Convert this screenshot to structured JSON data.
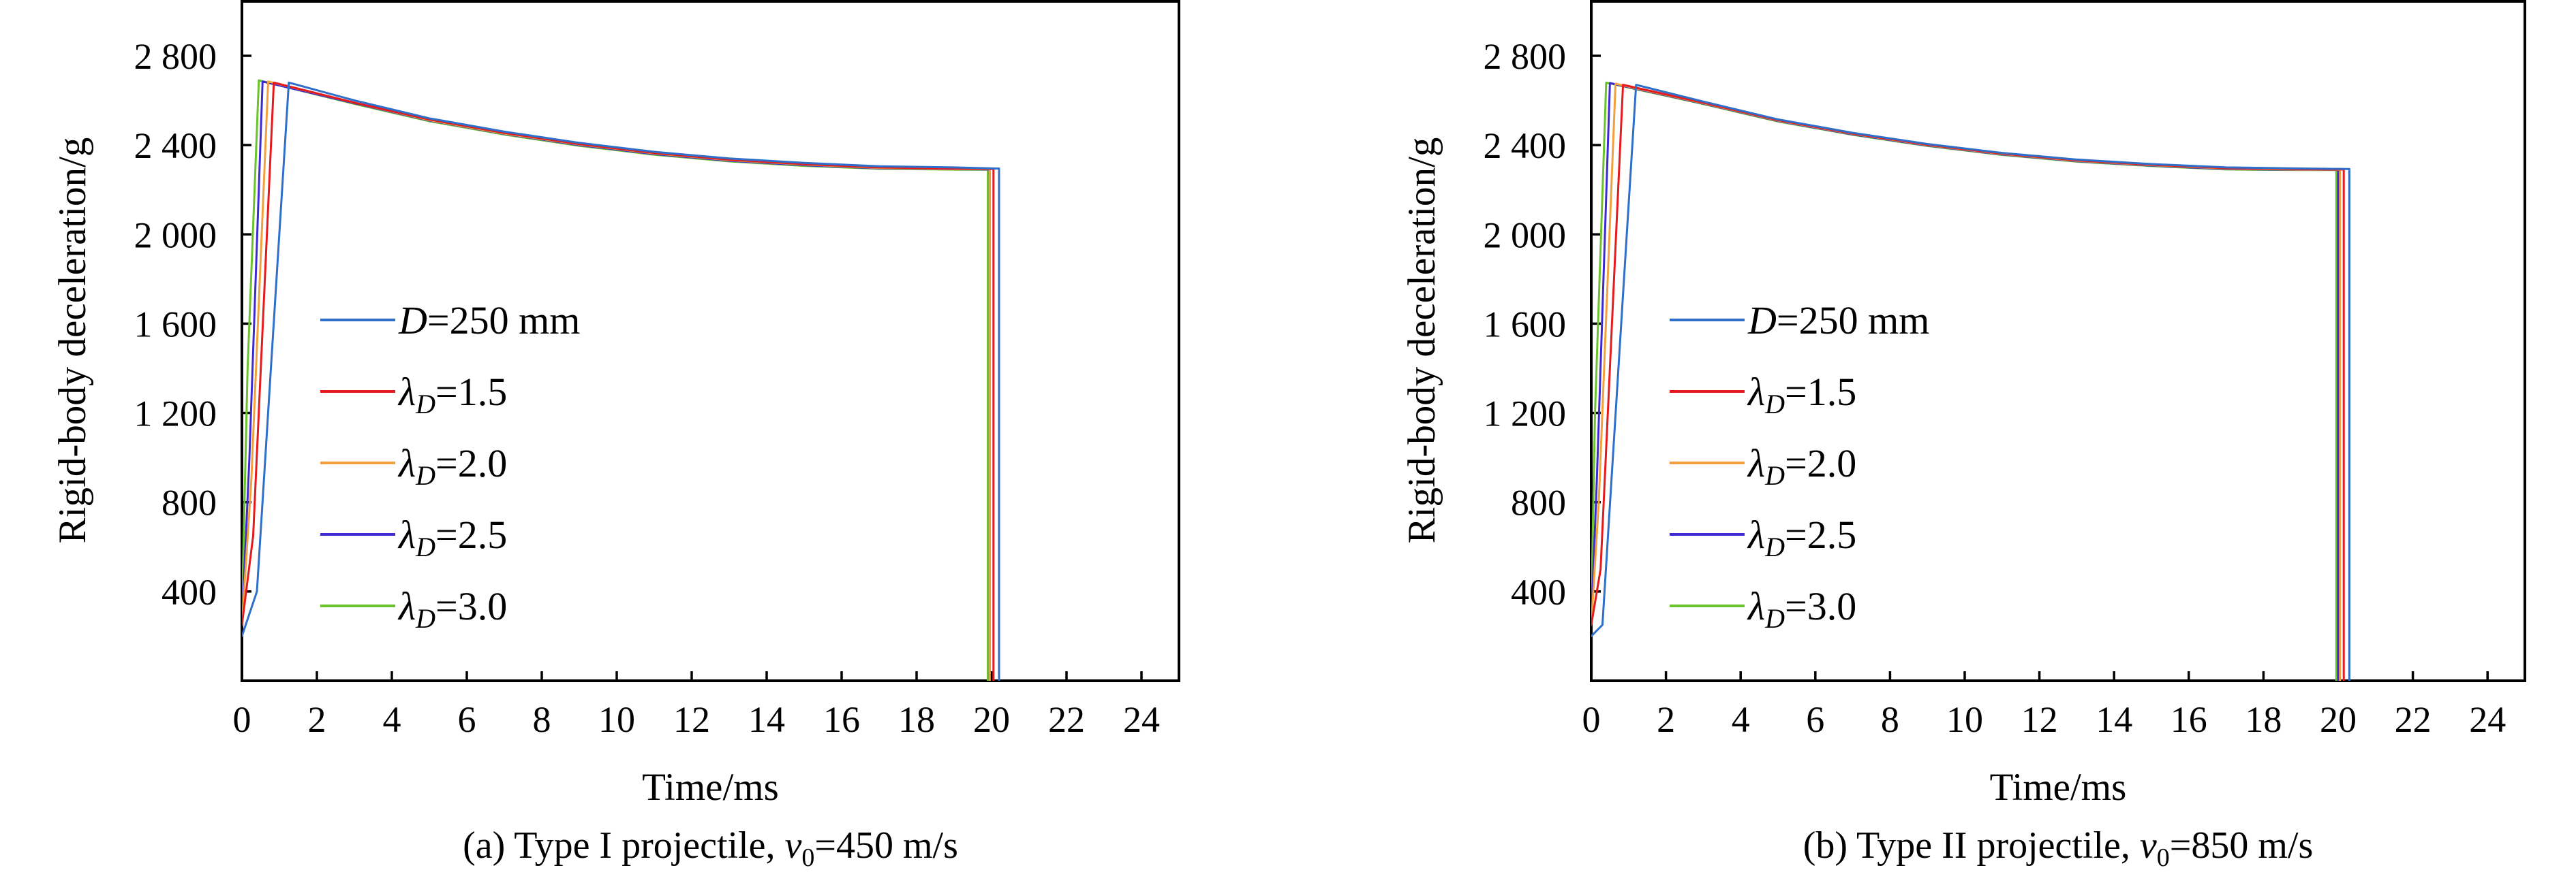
{
  "colors": {
    "D=250 mm": "#2f6fc9",
    "lambda_D=1.5": "#e41a1c",
    "lambda_D=2.0": "#f2a03d",
    "lambda_D=2.5": "#3b2bd1",
    "lambda_D=3.0": "#6ac32d"
  },
  "chart_data": [
    {
      "type": "line",
      "caption": {
        "prefix": "(a) Type I projectile, ",
        "var": "v",
        "var_sub": "0",
        "suffix": "=450 m/s"
      },
      "xlabel": "Time/ms",
      "ylabel": "Rigid-body deceleration/g",
      "xlim": [
        0,
        25
      ],
      "ylim": [
        0,
        3050
      ],
      "xticks": [
        0,
        2,
        4,
        6,
        8,
        10,
        12,
        14,
        16,
        18,
        20,
        22,
        24
      ],
      "xtick_labels": [
        "0",
        "2",
        "4",
        "6",
        "8",
        "10",
        "12",
        "14",
        "16",
        "18",
        "20",
        "22",
        "24"
      ],
      "yticks": [
        400,
        800,
        1200,
        1600,
        2000,
        2400,
        2800
      ],
      "ytick_labels": [
        "400",
        "800",
        "1 200",
        "1 600",
        "2 000",
        "2 400",
        "2 800"
      ],
      "grid": false,
      "legend_position": "left-middle",
      "legend": [
        {
          "main": "D",
          "sub": "",
          "rest": "=250 mm",
          "italic_main": true
        },
        {
          "main": "λ",
          "sub": "D",
          "rest": "=1.5",
          "italic_main": true
        },
        {
          "main": "λ",
          "sub": "D",
          "rest": "=2.0",
          "italic_main": true
        },
        {
          "main": "λ",
          "sub": "D",
          "rest": "=2.5",
          "italic_main": true
        },
        {
          "main": "λ",
          "sub": "D",
          "rest": "=3.0",
          "italic_main": true
        }
      ],
      "series": [
        {
          "name": "D=250 mm",
          "color_key": "D=250 mm",
          "x": [
            0.0,
            0.4,
            1.25,
            3,
            5,
            7,
            9,
            11,
            13,
            15,
            17,
            19,
            20.1,
            20.2,
            20.2
          ],
          "y": [
            200,
            400,
            2680,
            2600,
            2520,
            2460,
            2410,
            2370,
            2340,
            2320,
            2305,
            2300,
            2295,
            2295,
            0
          ]
        },
        {
          "name": "λD=1.5",
          "color_key": "lambda_D=1.5",
          "x": [
            0.0,
            0.3,
            0.85,
            3,
            5,
            7,
            9,
            11,
            13,
            15,
            17,
            19,
            20.05,
            20.05
          ],
          "y": [
            250,
            650,
            2680,
            2590,
            2515,
            2455,
            2405,
            2365,
            2335,
            2315,
            2300,
            2295,
            2293,
            0
          ]
        },
        {
          "name": "λD=2.0",
          "color_key": "lambda_D=2.0",
          "x": [
            0.0,
            0.25,
            0.7,
            3,
            5,
            7,
            9,
            11,
            13,
            15,
            17,
            19,
            19.95,
            19.95
          ],
          "y": [
            250,
            900,
            2685,
            2590,
            2512,
            2452,
            2403,
            2363,
            2333,
            2313,
            2298,
            2293,
            2292,
            0
          ]
        },
        {
          "name": "λD=2.5",
          "color_key": "lambda_D=2.5",
          "x": [
            0.0,
            0.2,
            0.55,
            3,
            5,
            7,
            9,
            11,
            13,
            15,
            17,
            19,
            19.95,
            19.95
          ],
          "y": [
            250,
            1000,
            2685,
            2588,
            2510,
            2450,
            2400,
            2360,
            2330,
            2310,
            2296,
            2292,
            2291,
            0
          ]
        },
        {
          "name": "λD=3.0",
          "color_key": "lambda_D=3.0",
          "x": [
            0.0,
            0.15,
            0.45,
            3,
            5,
            7,
            9,
            11,
            13,
            15,
            17,
            19,
            19.9,
            19.9
          ],
          "y": [
            300,
            1400,
            2690,
            2585,
            2507,
            2447,
            2397,
            2357,
            2327,
            2307,
            2294,
            2290,
            2290,
            0
          ]
        }
      ]
    },
    {
      "type": "line",
      "caption": {
        "prefix": "(b) Type II projectile, ",
        "var": "v",
        "var_sub": "0",
        "suffix": "=850 m/s"
      },
      "xlabel": "Time/ms",
      "ylabel": "Rigid-body deceleration/g",
      "xlim": [
        0,
        25
      ],
      "ylim": [
        0,
        3050
      ],
      "xticks": [
        0,
        2,
        4,
        6,
        8,
        10,
        12,
        14,
        16,
        18,
        20,
        22,
        24
      ],
      "xtick_labels": [
        "0",
        "2",
        "4",
        "6",
        "8",
        "10",
        "12",
        "14",
        "16",
        "18",
        "20",
        "22",
        "24"
      ],
      "yticks": [
        400,
        800,
        1200,
        1600,
        2000,
        2400,
        2800
      ],
      "ytick_labels": [
        "400",
        "800",
        "1 200",
        "1 600",
        "2 000",
        "2 400",
        "2 800"
      ],
      "grid": false,
      "legend_position": "left-middle",
      "legend": [
        {
          "main": "D",
          "sub": "",
          "rest": "=250 mm",
          "italic_main": true
        },
        {
          "main": "λ",
          "sub": "D",
          "rest": "=1.5",
          "italic_main": true
        },
        {
          "main": "λ",
          "sub": "D",
          "rest": "=2.0",
          "italic_main": true
        },
        {
          "main": "λ",
          "sub": "D",
          "rest": "=2.5",
          "italic_main": true
        },
        {
          "main": "λ",
          "sub": "D",
          "rest": "=3.0",
          "italic_main": true
        }
      ],
      "series": [
        {
          "name": "D=250 mm",
          "color_key": "D=250 mm",
          "x": [
            0.0,
            0.3,
            1.2,
            3,
            5,
            7,
            9,
            11,
            13,
            15,
            17,
            19,
            20.2,
            20.3,
            20.3
          ],
          "y": [
            200,
            250,
            2670,
            2595,
            2515,
            2455,
            2405,
            2365,
            2335,
            2315,
            2300,
            2295,
            2293,
            2293,
            0
          ]
        },
        {
          "name": "λD=1.5",
          "color_key": "lambda_D=1.5",
          "x": [
            0.0,
            0.25,
            0.85,
            3,
            5,
            7,
            9,
            11,
            13,
            15,
            17,
            19,
            20.15,
            20.15
          ],
          "y": [
            250,
            500,
            2670,
            2590,
            2512,
            2452,
            2402,
            2362,
            2332,
            2312,
            2297,
            2292,
            2291,
            0
          ]
        },
        {
          "name": "λD=2.0",
          "color_key": "lambda_D=2.0",
          "x": [
            0.0,
            0.2,
            0.65,
            3,
            5,
            7,
            9,
            11,
            13,
            15,
            17,
            19,
            20.05,
            20.05
          ],
          "y": [
            250,
            800,
            2675,
            2588,
            2510,
            2450,
            2400,
            2360,
            2330,
            2310,
            2295,
            2290,
            2290,
            0
          ]
        },
        {
          "name": "λD=2.5",
          "color_key": "lambda_D=2.5",
          "x": [
            0.0,
            0.15,
            0.5,
            3,
            5,
            7,
            9,
            11,
            13,
            15,
            17,
            19,
            20.0,
            20.0
          ],
          "y": [
            250,
            900,
            2678,
            2586,
            2508,
            2448,
            2398,
            2358,
            2328,
            2308,
            2293,
            2289,
            2289,
            0
          ]
        },
        {
          "name": "λD=3.0",
          "color_key": "lambda_D=3.0",
          "x": [
            0.0,
            0.1,
            0.4,
            3,
            5,
            7,
            9,
            11,
            13,
            15,
            17,
            19,
            19.95,
            19.95
          ],
          "y": [
            300,
            1200,
            2680,
            2584,
            2506,
            2446,
            2396,
            2356,
            2326,
            2306,
            2291,
            2288,
            2288,
            0
          ]
        }
      ]
    }
  ]
}
